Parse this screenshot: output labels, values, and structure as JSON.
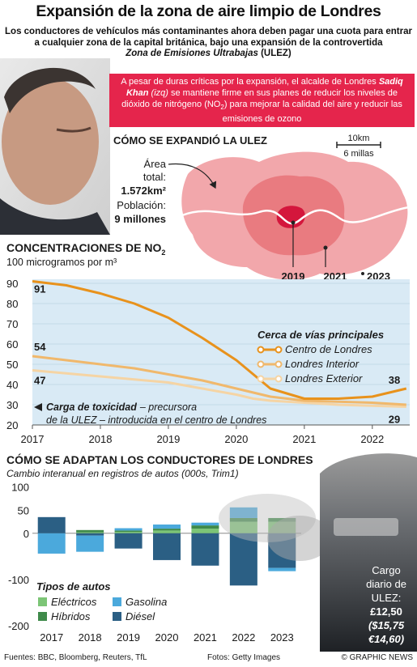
{
  "header": {
    "title": "Expansión de la zona de aire limpio de Londres",
    "subtitle": [
      "Los conductores de vehículos más contaminantes ahora deben pagar una cuota para entrar a cualquier zona de la capital británica, bajo una expansión de la controvertida",
      "Zona de Emisiones Ultrabajas",
      "(ULEZ)"
    ]
  },
  "callout": [
    "A pesar de duras críticas por la expansión, el alcalde de Londres",
    "Sadiq Khan",
    "(izq)",
    "se mantiene firme en sus planes de reducir los niveles de dióxido de nitrógeno (NO",
    "2",
    ") para mejorar la calidad del aire y reducir las emisiones de ozono"
  ],
  "map": {
    "title": "CÓMO SE EXPANDIÓ LA ULEZ",
    "scale": [
      "10km",
      "6 millas"
    ],
    "facts": [
      "Área",
      "total:",
      "1.572km²",
      "Población:",
      "9 millones"
    ],
    "years": [
      "2019",
      "2021",
      "2023"
    ]
  },
  "chart_data": [
    {
      "type": "line",
      "title": [
        "CONCENTRACIONES DE NO",
        "2"
      ],
      "subtitle": "100 microgramos por m³",
      "legend_title": "Cerca de vías principales",
      "annotation": [
        "Carga de toxicidad",
        "– precursora",
        "de la ULEZ – introducida en el centro de Londres"
      ],
      "x": [
        2017,
        2017.5,
        2018,
        2018.5,
        2019,
        2019.5,
        2020,
        2020.25,
        2020.5,
        2021,
        2021.5,
        2022,
        2022.5
      ],
      "series": [
        {
          "name": "Centro de Londres",
          "color": "#e8921c",
          "values": [
            91,
            89,
            85,
            80,
            73,
            63,
            52,
            45,
            38,
            33,
            33,
            34,
            38
          ]
        },
        {
          "name": "Londres Interior",
          "color": "#f0b86c",
          "values": [
            54,
            52,
            50,
            48,
            45,
            42,
            38,
            36,
            34,
            32,
            31.5,
            31,
            30
          ]
        },
        {
          "name": "Londres Exterior",
          "color": "#f5d4a4",
          "values": [
            47,
            45.5,
            44,
            42.5,
            41,
            38,
            35,
            33,
            32,
            31,
            30,
            29.5,
            29
          ]
        }
      ],
      "xlim": [
        2017,
        2022.55
      ],
      "xticks": [
        2017,
        2018,
        2019,
        2020,
        2021,
        2022
      ],
      "ylim": [
        20,
        92
      ],
      "yticks": [
        20,
        30,
        40,
        50,
        60,
        70,
        80,
        90
      ],
      "grid": true
    },
    {
      "type": "bar",
      "stacked": true,
      "title": "CÓMO SE ADAPTAN LOS CONDUCTORES DE LONDRES",
      "subtitle": "Cambio interanual en registros de autos  (000s, Trim1)",
      "legend_title": "Tipos de autos",
      "categories": [
        "2017",
        "2018",
        "2019",
        "2020",
        "2021",
        "2022",
        "2023"
      ],
      "series": [
        {
          "name": "Eléctricos",
          "color": "#7cc576",
          "values": [
            0,
            2,
            3,
            6,
            10,
            25,
            25
          ]
        },
        {
          "name": "Híbridos",
          "color": "#3f8a4a",
          "values": [
            0,
            5,
            3,
            4,
            7,
            8,
            8
          ]
        },
        {
          "name": "Gasolina",
          "color": "#4ba9dc",
          "values": [
            -44,
            -35,
            5,
            9,
            6,
            23,
            -7
          ]
        },
        {
          "name": "Diésel",
          "color": "#2b5f84",
          "values": [
            35,
            -5,
            -33,
            -58,
            -70,
            -113,
            -75
          ]
        }
      ],
      "ylim": [
        -200,
        110
      ],
      "yticks": [
        100,
        50,
        0,
        -100,
        -200
      ]
    }
  ],
  "fee": [
    "Cargo",
    "diario de",
    "ULEZ:",
    "£12,50",
    "($15,75",
    "€14,60)"
  ],
  "footer": [
    "Fuentes: BBC, Bloomberg, Reuters, TfL",
    "Fotos: Getty Images",
    "© GRAPHIC NEWS"
  ]
}
